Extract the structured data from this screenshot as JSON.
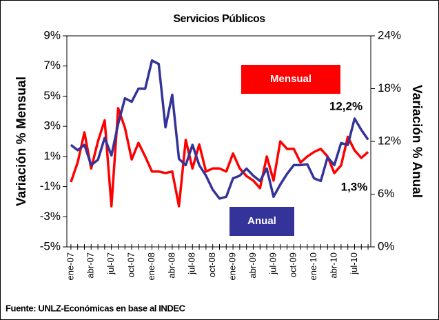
{
  "chart_data": {
    "type": "line",
    "title": "Servicios Públicos",
    "y_label": "Variación % Mensual",
    "y2_label": "Variación % Anual",
    "source": "Fuente: UNLZ-Económicas en base al INDEC",
    "categories": [
      "ene-07",
      null,
      null,
      "abr-07",
      null,
      null,
      "jul-07",
      null,
      null,
      "oct-07",
      null,
      null,
      "ene-08",
      null,
      null,
      "abr-08",
      null,
      null,
      "jul-08",
      null,
      null,
      "oct-08",
      null,
      null,
      "ene-09",
      null,
      null,
      "abr-09",
      null,
      null,
      "jul-09",
      null,
      null,
      "oct-09",
      null,
      null,
      "ene-10",
      null,
      null,
      "abr-10",
      null,
      null,
      "jul-10",
      null,
      null
    ],
    "series": [
      {
        "name": "Mensual",
        "color": "#ff0000",
        "axis": "y",
        "values": [
          -0.7,
          0.6,
          2.6,
          0.2,
          2.0,
          3.4,
          -2.3,
          4.2,
          2.9,
          0.8,
          1.9,
          1.0,
          0.0,
          0.0,
          -0.1,
          0.0,
          -2.3,
          2.1,
          0.2,
          1.8,
          0.0,
          0.2,
          0.2,
          0.0,
          1.2,
          0.2,
          -0.3,
          -0.6,
          -1.1,
          1.0,
          -0.6,
          2.0,
          1.5,
          1.5,
          0.6,
          1.0,
          1.3,
          1.5,
          1.0,
          -0.1,
          0.4,
          2.3,
          1.4,
          0.9,
          1.3
        ]
      },
      {
        "name": "Anual",
        "color": "#333399",
        "axis": "y2",
        "values": [
          11.6,
          11.0,
          11.6,
          9.3,
          9.9,
          12.4,
          10.4,
          14.0,
          16.9,
          16.5,
          18.0,
          18.0,
          21.2,
          20.8,
          13.6,
          17.3,
          10.0,
          9.3,
          11.6,
          9.3,
          8.1,
          6.5,
          5.5,
          5.7,
          7.8,
          8.1,
          8.9,
          8.1,
          7.5,
          8.9,
          5.7,
          7.1,
          8.3,
          9.3,
          9.3,
          9.4,
          7.8,
          7.5,
          10.2,
          9.3,
          11.8,
          11.6,
          14.6,
          13.3,
          12.2
        ]
      }
    ],
    "annotations": [
      "12,2%",
      "1,3%"
    ],
    "ylim": [
      -5,
      9
    ],
    "yticks": [
      {
        "value": 9,
        "label": "9%"
      },
      {
        "value": 7,
        "label": "7%"
      },
      {
        "value": 5,
        "label": "5%"
      },
      {
        "value": 3,
        "label": "3%"
      },
      {
        "value": 1,
        "label": "1%"
      },
      {
        "value": -1,
        "label": "-1%"
      },
      {
        "value": -3,
        "label": "-3%"
      },
      {
        "value": -5,
        "label": "-5%"
      }
    ],
    "y2lim": [
      0,
      24
    ],
    "y2ticks": [
      {
        "value": 24,
        "label": "24%"
      },
      {
        "value": 18,
        "label": "18%"
      },
      {
        "value": 12,
        "label": "12%"
      },
      {
        "value": 6,
        "label": "6%"
      },
      {
        "value": 0,
        "label": "0%"
      }
    ],
    "grid": false
  }
}
